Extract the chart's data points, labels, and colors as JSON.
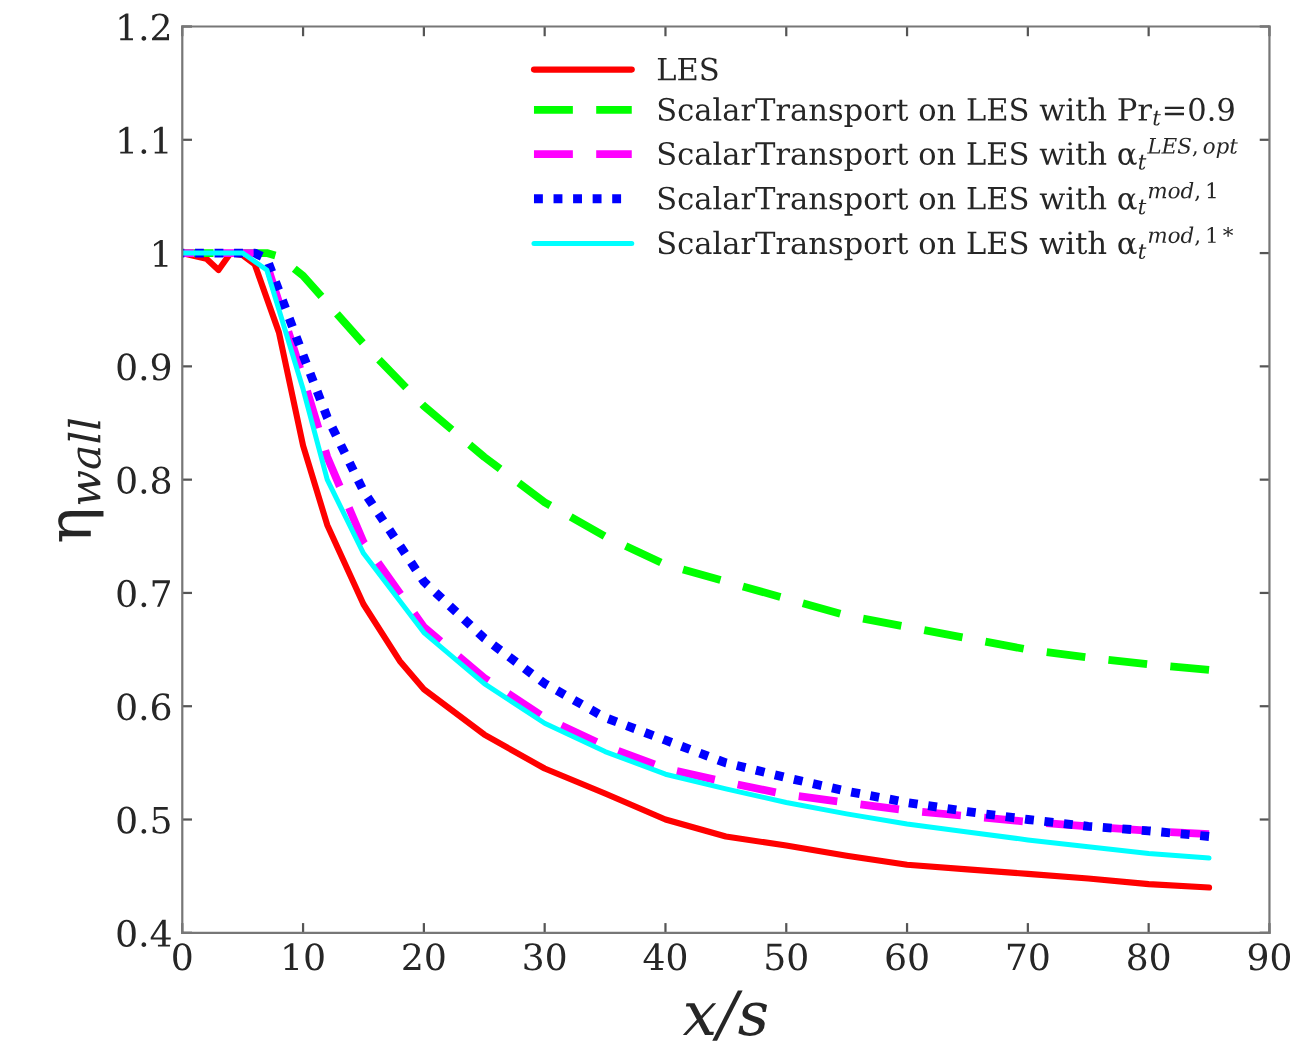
{
  "chart_data": {
    "type": "line",
    "xlabel": "x/s",
    "ylabel": "η$_{wall}$",
    "xlim": [
      0,
      90
    ],
    "xticks": [
      0,
      10,
      20,
      30,
      40,
      50,
      60,
      70,
      80,
      90
    ],
    "ylim": [
      0.4,
      1.2
    ],
    "yticks": [
      0.4,
      0.5,
      0.6,
      0.7,
      0.8,
      0.9,
      {
        "value": 1,
        "label": "1"
      },
      1.1,
      1.2
    ],
    "grid": false,
    "legend": "top right",
    "marker": "none",
    "series": [
      {
        "name": "LES",
        "color": "#ff0000",
        "line_style": "solid",
        "x": [
          0,
          2,
          3,
          4,
          5,
          6,
          8,
          10,
          12,
          15,
          18,
          20,
          25,
          30,
          35,
          40,
          45,
          50,
          55,
          60,
          65,
          70,
          75,
          80,
          85
        ],
        "values": [
          1.0,
          0.995,
          0.985,
          1.0,
          0.998,
          0.99,
          0.93,
          0.83,
          0.76,
          0.69,
          0.64,
          0.615,
          0.575,
          0.545,
          0.523,
          0.5,
          0.485,
          0.477,
          0.468,
          0.46,
          0.456,
          0.452,
          0.448,
          0.443,
          0.44
        ]
      },
      {
        "name": "ScalarTransport on LES with Pr$_{t}$=0.9",
        "color": "#00ff00",
        "line_style": "dashed",
        "x": [
          0,
          7,
          8,
          10,
          15,
          20,
          25,
          30,
          35,
          40,
          45,
          50,
          55,
          60,
          65,
          70,
          75,
          80,
          85
        ],
        "values": [
          1.0,
          1.0,
          0.997,
          0.98,
          0.92,
          0.865,
          0.82,
          0.78,
          0.75,
          0.725,
          0.71,
          0.695,
          0.68,
          0.67,
          0.66,
          0.65,
          0.643,
          0.637,
          0.632
        ]
      },
      {
        "name": "ScalarTransport on LES with α$_{t}$$^{LES,opt}$",
        "color": "#ff00ff",
        "line_style": "dashed",
        "x": [
          0,
          6,
          7,
          10,
          12,
          15,
          20,
          25,
          30,
          35,
          40,
          45,
          50,
          55,
          60,
          65,
          70,
          75,
          80,
          85
        ],
        "values": [
          1.0,
          1.0,
          0.99,
          0.89,
          0.82,
          0.745,
          0.67,
          0.625,
          0.59,
          0.565,
          0.545,
          0.533,
          0.522,
          0.515,
          0.508,
          0.503,
          0.498,
          0.494,
          0.49,
          0.487
        ]
      },
      {
        "name": "ScalarTransport on LES with α$_{t}$$^{mod,1}$",
        "color": "#0000ff",
        "line_style": "dotted",
        "x": [
          0,
          6,
          7,
          10,
          12,
          15,
          20,
          25,
          30,
          35,
          40,
          45,
          50,
          55,
          60,
          65,
          70,
          75,
          80,
          85
        ],
        "values": [
          1.0,
          1.0,
          0.995,
          0.91,
          0.855,
          0.79,
          0.71,
          0.66,
          0.62,
          0.59,
          0.57,
          0.55,
          0.537,
          0.525,
          0.515,
          0.507,
          0.5,
          0.494,
          0.49,
          0.485
        ]
      },
      {
        "name": "ScalarTransport on LES with α$_{t}$$^{mod,1*}$",
        "color": "#00ffff",
        "line_style": "solid",
        "x": [
          0,
          5,
          7,
          10,
          12,
          15,
          20,
          25,
          30,
          35,
          40,
          45,
          50,
          55,
          60,
          65,
          70,
          75,
          80,
          85
        ],
        "values": [
          1.0,
          1.0,
          0.985,
          0.88,
          0.8,
          0.735,
          0.665,
          0.62,
          0.585,
          0.56,
          0.54,
          0.527,
          0.515,
          0.505,
          0.496,
          0.489,
          0.482,
          0.476,
          0.47,
          0.466
        ]
      }
    ]
  }
}
